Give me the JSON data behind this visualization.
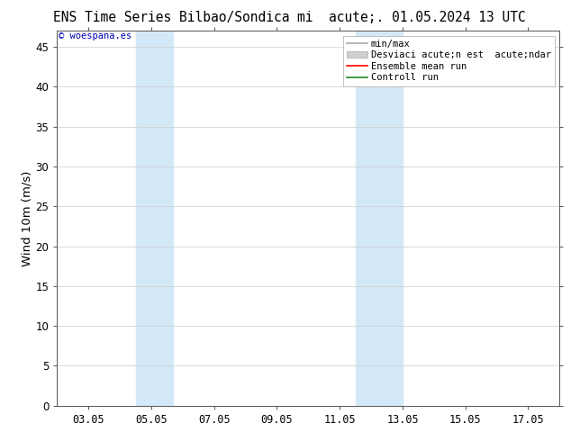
{
  "title_left": "ENS Time Series Bilbao/Sondica",
  "title_right": "mi  acute;. 01.05.2024 13 UTC",
  "ylabel": "Wind 10m (m/s)",
  "watermark": "© woespana.es",
  "xtick_labels": [
    "03.05",
    "05.05",
    "07.05",
    "09.05",
    "11.05",
    "13.05",
    "15.05",
    "17.05"
  ],
  "xtick_positions": [
    3,
    5,
    7,
    9,
    11,
    13,
    15,
    17
  ],
  "xlim": [
    2,
    18
  ],
  "ylim": [
    0,
    47
  ],
  "ytick_positions": [
    0,
    5,
    10,
    15,
    20,
    25,
    30,
    35,
    40,
    45
  ],
  "ytick_labels": [
    "0",
    "5",
    "10",
    "15",
    "20",
    "25",
    "30",
    "35",
    "40",
    "45"
  ],
  "shaded_regions": [
    {
      "xmin": 4.5,
      "xmax": 5.7,
      "color": "#d4e9f7"
    },
    {
      "xmin": 11.5,
      "xmax": 13.0,
      "color": "#d4e9f7"
    }
  ],
  "legend_labels": [
    "min/max",
    "Desviaci acute;n est  acute;ndar",
    "Ensemble mean run",
    "Controll run"
  ],
  "legend_colors": [
    "#aaaaaa",
    "#cccccc",
    "#ff0000",
    "#228B22"
  ],
  "background_color": "#ffffff",
  "plot_bg_color": "#ffffff",
  "border_color": "#555555",
  "title_fontsize": 10.5,
  "tick_fontsize": 8.5,
  "ylabel_fontsize": 9.5,
  "watermark_color": "#0000bb",
  "legend_fontsize": 7.5
}
